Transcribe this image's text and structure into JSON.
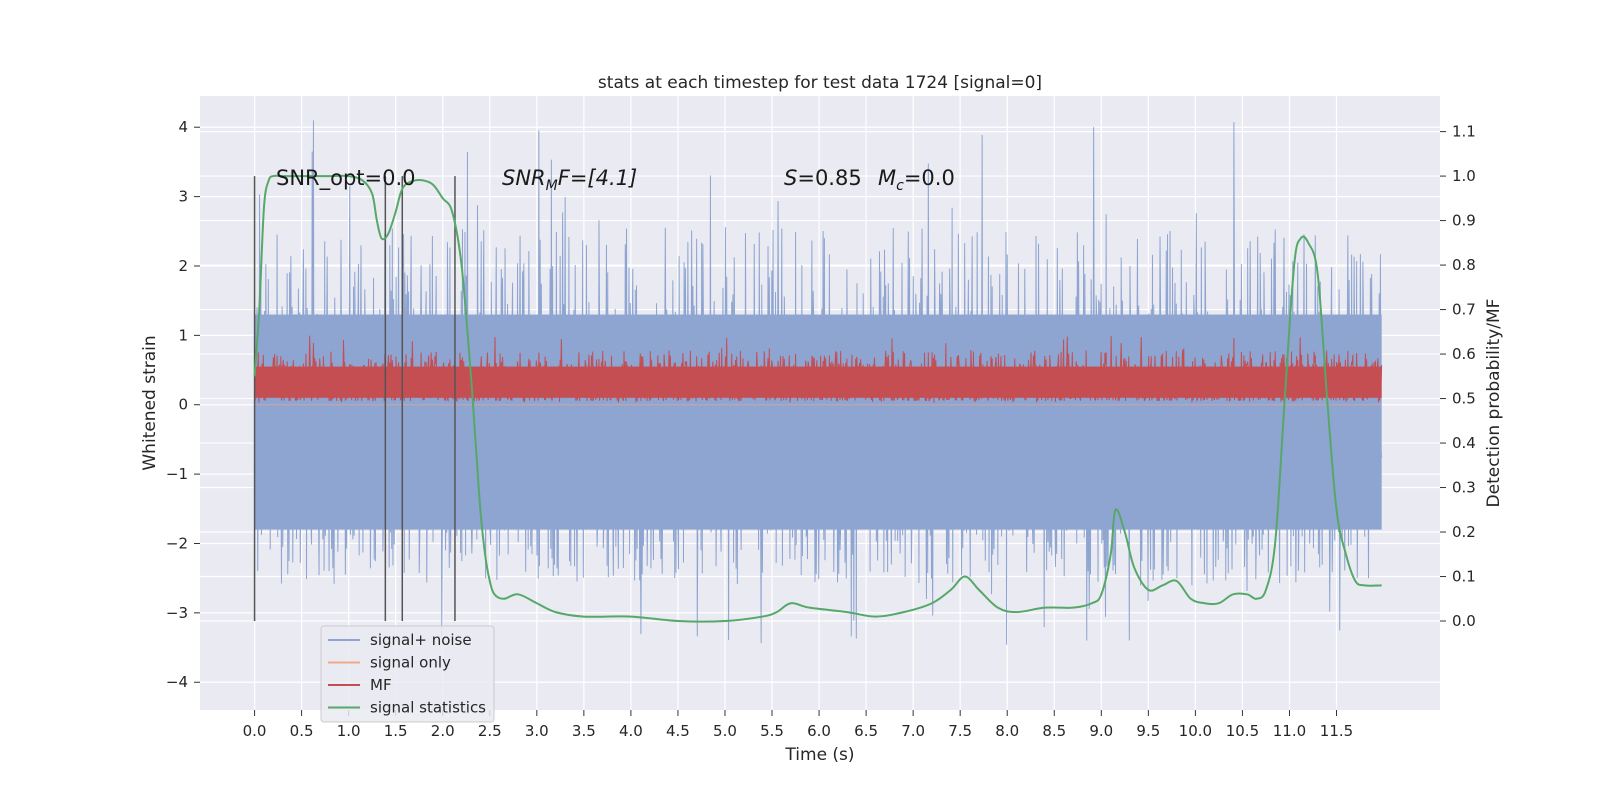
{
  "chart_data": {
    "type": "line",
    "title": "stats at each timestep for test data 1724 [signal=0]",
    "xlabel": "Time (s)",
    "ylabel_left": "Whitened strain",
    "ylabel_right": "Detection probability/MF",
    "xlim": [
      -0.58,
      12.6
    ],
    "ylim_left": [
      -4.4,
      4.45
    ],
    "ylim_right": [
      -0.2,
      1.18
    ],
    "x_ticks": [
      "0.0",
      "0.5",
      "1.0",
      "1.5",
      "2.0",
      "2.5",
      "3.0",
      "3.5",
      "4.0",
      "4.5",
      "5.0",
      "5.5",
      "6.0",
      "6.5",
      "7.0",
      "7.5",
      "8.0",
      "8.5",
      "9.0",
      "9.5",
      "10.0",
      "10.5",
      "11.0",
      "11.5"
    ],
    "y_ticks_left": [
      "4",
      "3",
      "2",
      "1",
      "0",
      "−1",
      "−2",
      "−3",
      "−4"
    ],
    "y_ticks_right": [
      "1.1",
      "1.0",
      "0.9",
      "0.8",
      "0.7",
      "0.6",
      "0.5",
      "0.4",
      "0.3",
      "0.2",
      "0.1",
      "0.0"
    ],
    "grid": true,
    "legend_position": "lower-left",
    "annotations": {
      "snr_opt": "SNR_opt=0.0",
      "snr_mf_sym": "SNR",
      "snr_mf_sub": "M",
      "snr_mf_rest": "F=[4.1]",
      "s_label": "S",
      "s_value": "=0.85",
      "mc_sym": "M",
      "mc_sub": "c",
      "mc_value": "=0.0"
    },
    "vertical_markers_x": [
      0.0,
      1.39,
      1.57,
      2.13
    ],
    "series": [
      {
        "name": "signal+ noise",
        "axis": "left",
        "color": "#8ea5d1",
        "style": "dense-noise",
        "x_range": [
          0.0,
          11.98
        ],
        "envelope": {
          "core_low": -1.8,
          "core_high": 1.3,
          "peak_low": -3.55,
          "peak_high": 4.1
        }
      },
      {
        "name": "signal only",
        "axis": "left",
        "color": "#eda98a",
        "style": "flat",
        "x_range": [
          0.0,
          11.98
        ],
        "value": 0.0
      },
      {
        "name": "MF",
        "axis": "left",
        "color": "#c44e52",
        "style": "dense-noise",
        "x_range": [
          0.0,
          11.98
        ],
        "envelope": {
          "core_low": 0.07,
          "core_high": 0.6,
          "peak_low": 0.03,
          "peak_high": 1.0
        }
      },
      {
        "name": "signal statistics",
        "axis": "right",
        "color": "#55a868",
        "style": "line",
        "x": [
          0.0,
          0.05,
          0.1,
          0.15,
          0.2,
          0.3,
          0.5,
          0.8,
          1.0,
          1.15,
          1.25,
          1.3,
          1.35,
          1.42,
          1.5,
          1.55,
          1.6,
          1.7,
          1.8,
          1.9,
          2.0,
          2.1,
          2.2,
          2.3,
          2.35,
          2.4,
          2.45,
          2.5,
          2.55,
          2.65,
          2.8,
          3.0,
          3.2,
          3.5,
          4.0,
          4.5,
          5.0,
          5.4,
          5.55,
          5.7,
          5.9,
          6.3,
          6.6,
          6.9,
          7.2,
          7.4,
          7.55,
          7.7,
          7.9,
          8.1,
          8.4,
          8.7,
          8.9,
          9.0,
          9.1,
          9.15,
          9.25,
          9.35,
          9.5,
          9.65,
          9.8,
          9.95,
          10.1,
          10.25,
          10.4,
          10.55,
          10.65,
          10.75,
          10.85,
          10.95,
          11.05,
          11.12,
          11.2,
          11.3,
          11.4,
          11.5,
          11.6,
          11.7,
          11.8,
          11.98
        ],
        "y": [
          0.55,
          0.7,
          0.93,
          0.99,
          1.0,
          1.0,
          1.0,
          1.0,
          1.0,
          0.99,
          0.96,
          0.9,
          0.86,
          0.87,
          0.92,
          0.96,
          0.98,
          0.99,
          0.99,
          0.98,
          0.95,
          0.92,
          0.8,
          0.55,
          0.4,
          0.25,
          0.15,
          0.09,
          0.06,
          0.05,
          0.06,
          0.04,
          0.02,
          0.01,
          0.01,
          0.0,
          0.0,
          0.01,
          0.02,
          0.04,
          0.03,
          0.02,
          0.01,
          0.02,
          0.04,
          0.07,
          0.1,
          0.07,
          0.03,
          0.02,
          0.03,
          0.03,
          0.04,
          0.06,
          0.15,
          0.25,
          0.2,
          0.12,
          0.07,
          0.08,
          0.09,
          0.05,
          0.04,
          0.04,
          0.06,
          0.06,
          0.05,
          0.07,
          0.18,
          0.5,
          0.8,
          0.86,
          0.85,
          0.78,
          0.5,
          0.25,
          0.15,
          0.09,
          0.08,
          0.08
        ]
      }
    ]
  }
}
